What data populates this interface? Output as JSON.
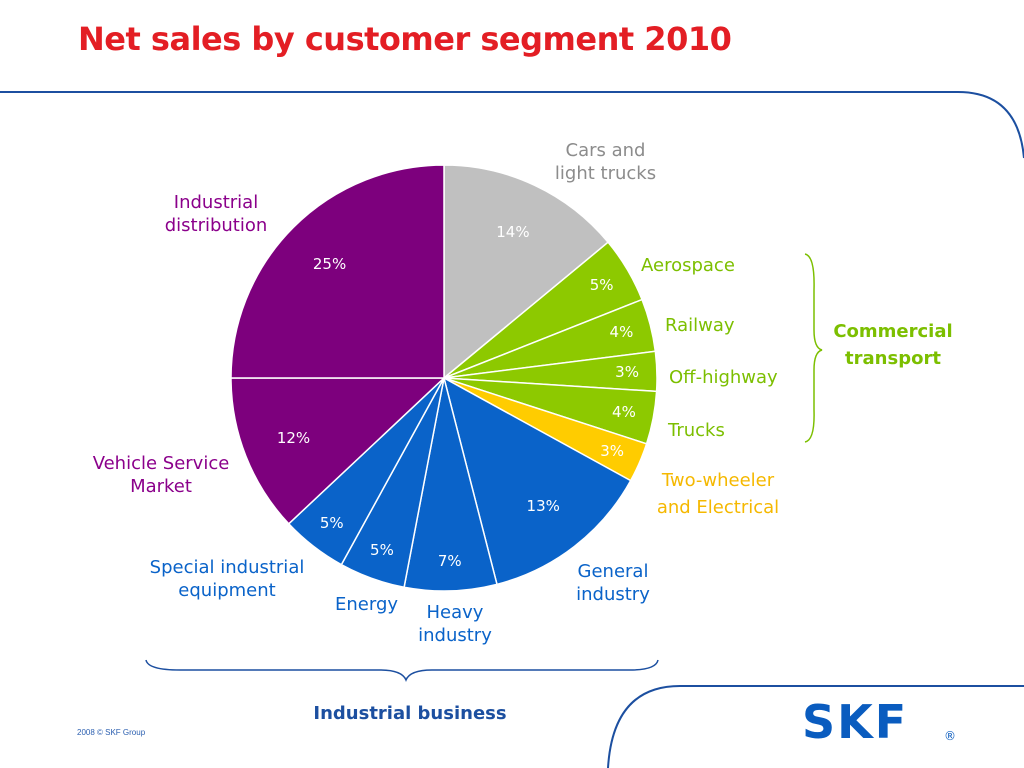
{
  "chart_data": {
    "type": "pie",
    "title": "Net sales by customer segment 2010",
    "unit": "%",
    "slices": [
      {
        "name": "Cars and light trucks",
        "value": 14,
        "label": "14%",
        "color": "#c0c0c0",
        "text_color": "#8c8c8c"
      },
      {
        "name": "Aerospace",
        "value": 5,
        "label": "5%",
        "color": "#8dc900",
        "text_color": "#7cbf00"
      },
      {
        "name": "Railway",
        "value": 4,
        "label": "4%",
        "color": "#8dc900",
        "text_color": "#7cbf00"
      },
      {
        "name": "Off-highway",
        "value": 3,
        "label": "3%",
        "color": "#8dc900",
        "text_color": "#7cbf00"
      },
      {
        "name": "Trucks",
        "value": 4,
        "label": "4%",
        "color": "#8dc900",
        "text_color": "#7cbf00"
      },
      {
        "name": "Two-wheeler and Electrical",
        "value": 3,
        "label": "3%",
        "color": "#ffcc00",
        "text_color": "#f5b800"
      },
      {
        "name": "General industry",
        "value": 13,
        "label": "13%",
        "color": "#0a63c9",
        "text_color": "#0a63c9"
      },
      {
        "name": "Heavy industry",
        "value": 7,
        "label": "7%",
        "color": "#0a63c9",
        "text_color": "#0a63c9"
      },
      {
        "name": "Energy",
        "value": 5,
        "label": "5%",
        "color": "#0a63c9",
        "text_color": "#0a63c9"
      },
      {
        "name": "Special industrial equipment",
        "value": 5,
        "label": "5%",
        "color": "#0a63c9",
        "text_color": "#0a63c9"
      },
      {
        "name": "Vehicle Service Market",
        "value": 12,
        "label": "12%",
        "color": "#7d007d",
        "text_color": "#8b008b"
      },
      {
        "name": "Industrial distribution",
        "value": 25,
        "label": "25%",
        "color": "#7d007d",
        "text_color": "#8b008b"
      }
    ],
    "groups": [
      {
        "name": "Commercial transport",
        "members": [
          "Aerospace",
          "Railway",
          "Off-highway",
          "Trucks"
        ],
        "color": "#7cbf00"
      },
      {
        "name": "Industrial business",
        "members": [
          "General industry",
          "Heavy industry",
          "Energy",
          "Special industrial equipment"
        ],
        "color": "#1c4fa0"
      }
    ]
  },
  "labels": {
    "cars_1": "Cars and",
    "cars_2": "light trucks",
    "aerospace": "Aerospace",
    "railway": "Railway",
    "offhighway": "Off-highway",
    "trucks": "Trucks",
    "twowheeler_1": "Two-wheeler",
    "twowheeler_2": "and Electrical",
    "general_1": "General",
    "general_2": "industry",
    "heavy_1": "Heavy",
    "heavy_2": "industry",
    "energy": "Energy",
    "special_1": "Special industrial",
    "special_2": "equipment",
    "vsm_1": "Vehicle Service",
    "vsm_2": "Market",
    "indist_1": "Industrial",
    "indist_2": "distribution",
    "commercial_1": "Commercial",
    "commercial_2": "transport",
    "industrial_business": "Industrial business"
  },
  "footer": {
    "note": "2008  © SKF Group",
    "logo_text": "SKF",
    "logo_mark": "®"
  },
  "colors": {
    "title": "#e31e24",
    "frame_line": "#1c4fa0",
    "bracket_green": "#7cbf00",
    "bracket_blue": "#1c4fa0",
    "logo": "#0a5cbf"
  }
}
